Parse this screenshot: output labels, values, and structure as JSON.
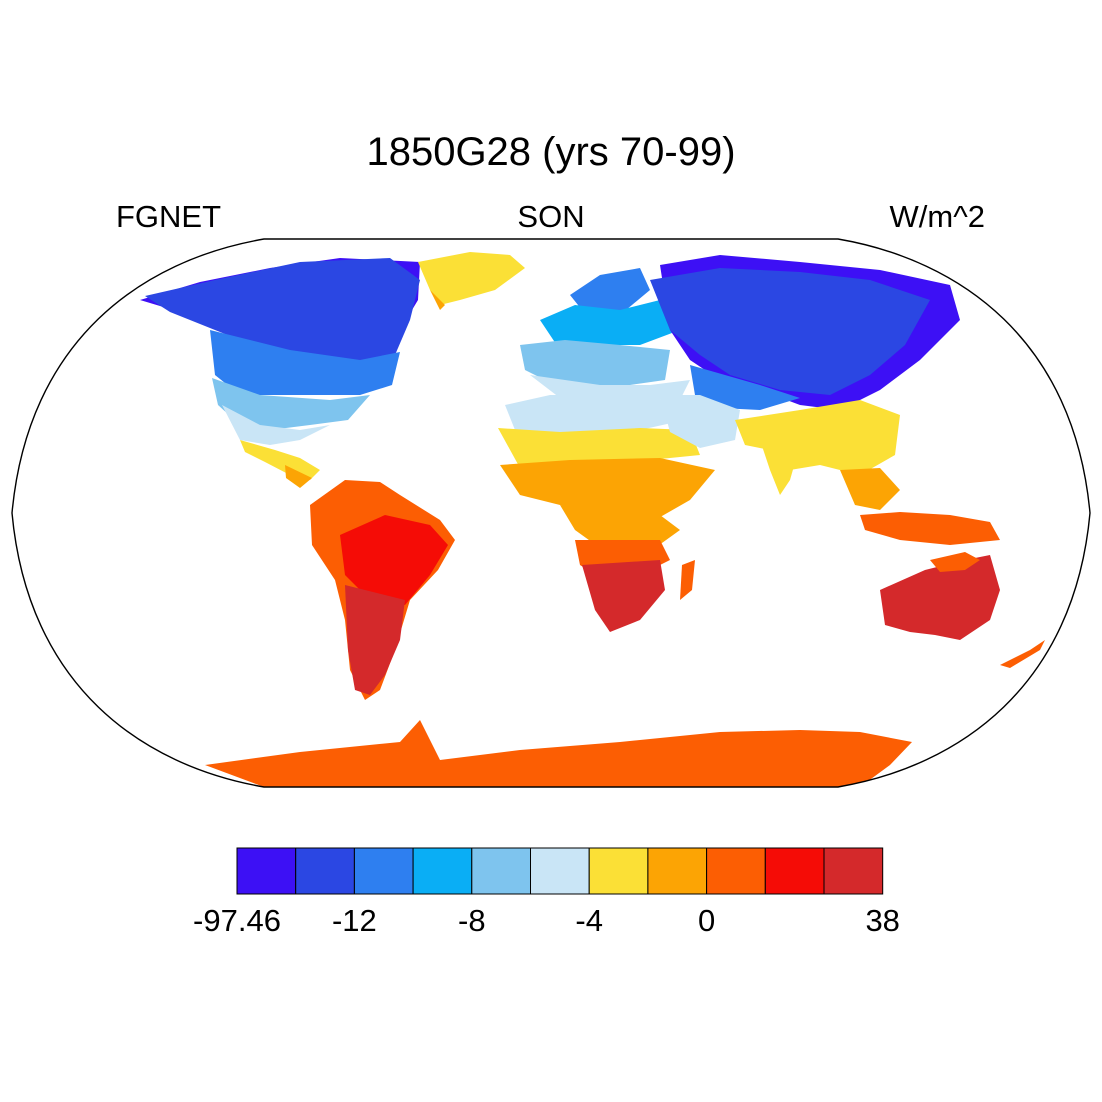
{
  "title": "1850G28 (yrs 70-99)",
  "subtitle_left": "FGNET",
  "subtitle_center": "SON",
  "subtitle_right": "W/m^2",
  "colorbar": {
    "colors": [
      "#3d10f5",
      "#2b47e3",
      "#2e7ff0",
      "#0aaef5",
      "#7ec4ee",
      "#c9e5f6",
      "#fbe036",
      "#fca404",
      "#fc5e03",
      "#f50c06",
      "#d4292b"
    ],
    "labels": [
      "-97.46",
      "-12",
      "-8",
      "-4",
      "0",
      "38"
    ],
    "label_boundaries": [
      0,
      2,
      4,
      6,
      8,
      11
    ]
  },
  "projection": "Robinson"
}
